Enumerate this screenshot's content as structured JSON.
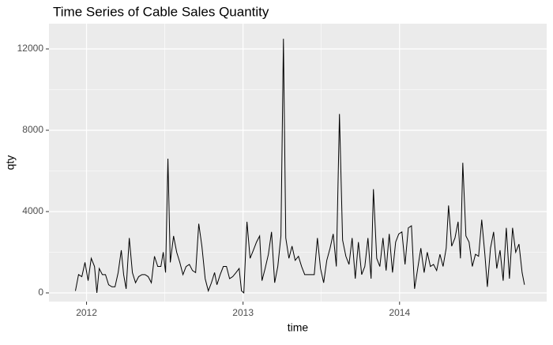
{
  "chart_data": {
    "type": "line",
    "title": "Time Series of Cable Sales Quantity",
    "x_label": "time",
    "y_label": "qty",
    "x": [
      2011.929,
      2011.949,
      2011.97,
      2011.99,
      2012.01,
      2012.03,
      2012.051,
      2012.066,
      2012.081,
      2012.101,
      2012.121,
      2012.141,
      2012.162,
      2012.182,
      2012.202,
      2012.222,
      2012.237,
      2012.253,
      2012.273,
      2012.293,
      2012.313,
      2012.333,
      2012.354,
      2012.374,
      2012.394,
      2012.414,
      2012.434,
      2012.455,
      2012.475,
      2012.49,
      2012.505,
      2012.52,
      2012.535,
      2012.556,
      2012.576,
      2012.596,
      2012.616,
      2012.636,
      2012.657,
      2012.677,
      2012.697,
      2012.717,
      2012.737,
      2012.758,
      2012.778,
      2012.798,
      2012.818,
      2012.833,
      2012.854,
      2012.874,
      2012.894,
      2012.914,
      2012.934,
      2012.955,
      2012.975,
      2012.99,
      2013.005,
      2013.025,
      2013.045,
      2013.066,
      2013.086,
      2013.106,
      2013.121,
      2013.141,
      2013.162,
      2013.182,
      2013.202,
      2013.222,
      2013.242,
      2013.258,
      2013.273,
      2013.293,
      2013.313,
      2013.333,
      2013.354,
      2013.374,
      2013.394,
      2013.414,
      2013.434,
      2013.455,
      2013.475,
      2013.495,
      2013.515,
      2013.535,
      2013.556,
      2013.576,
      2013.596,
      2013.616,
      2013.636,
      2013.657,
      2013.677,
      2013.697,
      2013.717,
      2013.737,
      2013.758,
      2013.778,
      2013.798,
      2013.818,
      2013.833,
      2013.854,
      2013.874,
      2013.894,
      2013.914,
      2013.934,
      2013.955,
      2013.975,
      2013.995,
      2014.015,
      2014.035,
      2014.056,
      2014.076,
      2014.096,
      2014.116,
      2014.136,
      2014.157,
      2014.177,
      2014.197,
      2014.217,
      2014.237,
      2014.258,
      2014.278,
      2014.298,
      2014.313,
      2014.333,
      2014.354,
      2014.374,
      2014.389,
      2014.404,
      2014.424,
      2014.444,
      2014.465,
      2014.485,
      2014.505,
      2014.525,
      2014.545,
      2014.561,
      2014.581,
      2014.601,
      2014.621,
      2014.642,
      2014.662,
      2014.682,
      2014.702,
      2014.722,
      2014.742,
      2014.763,
      2014.783,
      2014.798
    ],
    "series": [
      {
        "color": "#000000",
        "values": [
          100,
          900,
          800,
          1500,
          600,
          1700,
          1300,
          0,
          1200,
          900,
          900,
          400,
          300,
          300,
          1000,
          2100,
          900,
          200,
          2700,
          1000,
          500,
          800,
          900,
          900,
          800,
          500,
          1800,
          1300,
          1300,
          2000,
          1000,
          6600,
          1500,
          2800,
          2000,
          1500,
          900,
          1300,
          1400,
          1100,
          1000,
          3400,
          2300,
          700,
          100,
          500,
          1000,
          400,
          900,
          1300,
          1300,
          700,
          800,
          1000,
          1200,
          100,
          0,
          3500,
          1700,
          2100,
          2500,
          2800,
          600,
          1200,
          1900,
          3000,
          500,
          1300,
          2800,
          12500,
          2700,
          1700,
          2300,
          1600,
          1800,
          1300,
          900,
          900,
          900,
          900,
          2700,
          1200,
          500,
          1600,
          2200,
          2900,
          1300,
          8800,
          2600,
          1800,
          1400,
          2700,
          700,
          2500,
          900,
          1300,
          2700,
          700,
          5100,
          1700,
          1300,
          2700,
          1100,
          2900,
          1000,
          2500,
          2900,
          3000,
          1400,
          3200,
          3300,
          200,
          1200,
          2200,
          1000,
          2000,
          1300,
          1400,
          1100,
          1900,
          1300,
          2200,
          4300,
          2300,
          2700,
          3500,
          1700,
          6400,
          2800,
          2500,
          1300,
          1900,
          1800,
          3600,
          1900,
          300,
          2200,
          3000,
          1200,
          2100,
          600,
          3200,
          700,
          3200,
          2000,
          2400,
          1000,
          400
        ]
      }
    ],
    "xlim": [
      2011.76,
      2014.94
    ],
    "xticks": [
      2012,
      2013,
      2014
    ],
    "ylim": [
      -427,
      13243
    ],
    "yticks": [
      0,
      4000,
      8000,
      12000
    ],
    "grid": true
  }
}
